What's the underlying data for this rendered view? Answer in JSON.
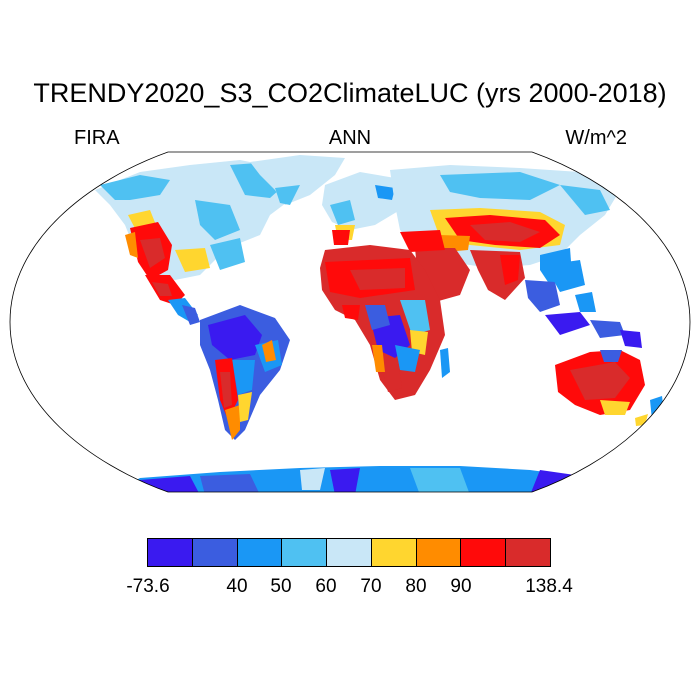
{
  "title": "TRENDY2020_S3_CO2ClimateLUC (yrs 2000-2018)",
  "left_label": "FIRA",
  "center_label": "ANN",
  "right_label": "W/m^2",
  "colorbar": {
    "colors": [
      "#3a1af0",
      "#3b5de0",
      "#1a97f5",
      "#4fc1f2",
      "#c9e7f7",
      "#ffd62f",
      "#ff8c00",
      "#ff0a0a",
      "#d92b2b"
    ],
    "labels": [
      "-73.6",
      "40",
      "50",
      "60",
      "70",
      "80",
      "90",
      "138.4"
    ]
  },
  "map": {
    "projection": "Robinson",
    "ocean_color": "#ffffff",
    "palette": {
      "c1": "#3a1af0",
      "c2": "#3b5de0",
      "c3": "#1a97f5",
      "c4": "#4fc1f2",
      "c5": "#c9e7f7",
      "c6": "#ffd62f",
      "c7": "#ff8c00",
      "c8": "#ff0a0a",
      "c9": "#d92b2b"
    }
  }
}
